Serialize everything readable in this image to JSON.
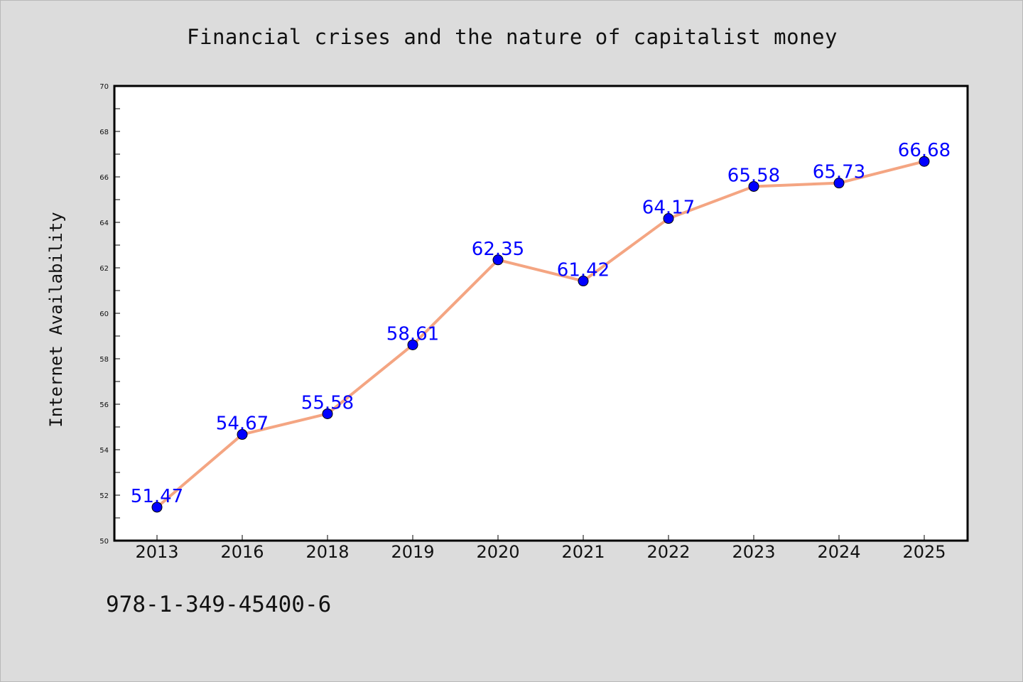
{
  "chart_data": {
    "type": "line",
    "title": "Financial crises and the nature of capitalist money",
    "xlabel": "",
    "ylabel": "Internet Availability",
    "categories": [
      "2013",
      "2016",
      "2018",
      "2019",
      "2020",
      "2021",
      "2022",
      "2023",
      "2024",
      "2025"
    ],
    "series": [
      {
        "values": [
          51.47,
          54.67,
          55.58,
          58.61,
          62.35,
          61.42,
          64.17,
          65.58,
          65.73,
          66.68
        ],
        "data_labels": [
          "51.47",
          "54.67",
          "55.58",
          "58.61",
          "62.35",
          "61.42",
          "64.17",
          "65.58",
          "65.73",
          "66.68"
        ],
        "line_color": "#f4a582",
        "marker_color": "#0000ff"
      }
    ],
    "ylim": [
      50,
      70
    ],
    "yticks": [
      "50",
      "52",
      "54",
      "56",
      "58",
      "60",
      "62",
      "64",
      "66",
      "68",
      "70"
    ],
    "grid": false,
    "legend": "none"
  },
  "footer": {
    "isbn": "978-1-349-45400-6"
  }
}
